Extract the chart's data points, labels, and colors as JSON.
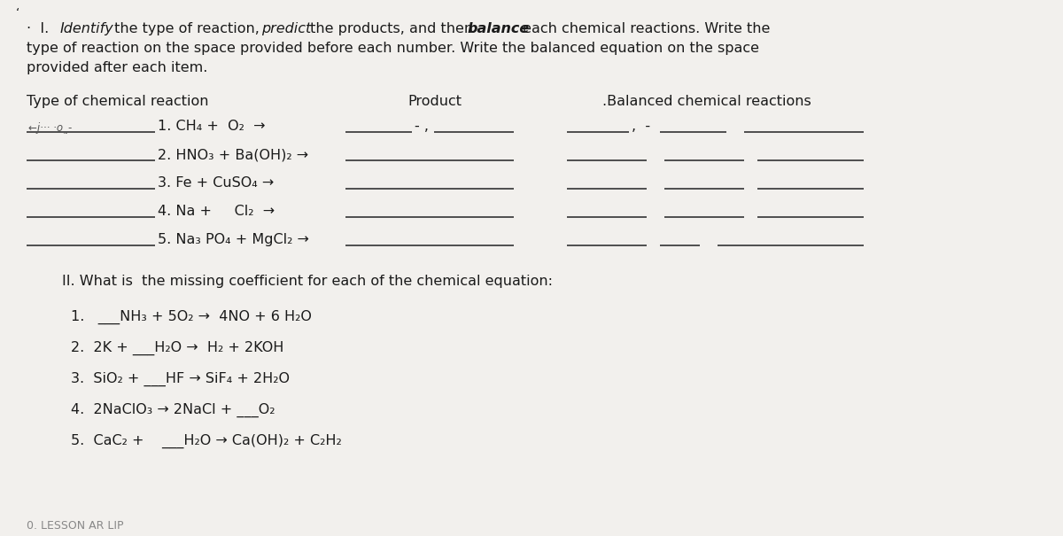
{
  "bg_color": "#f2f0ed",
  "text_color": "#1a1a1a",
  "line_color": "#333333",
  "fig_width": 12.0,
  "fig_height": 6.05,
  "dpi": 100,
  "font_size": 11.5,
  "font_family": "DejaVu Sans",
  "title_bullet": "·  I. ",
  "title_seg1_italic": "Identify",
  "title_seg2": " the type of reaction, ",
  "title_seg3_italic": "predict",
  "title_seg4": " the products, and then ",
  "title_seg5_bolditalic": "balance",
  "title_seg6": " each chemical reactions. Write the",
  "title_line2": "type of reaction on the space provided before each number. Write the balanced equation on the space",
  "title_line3": "provided after each item.",
  "col1_label": "Type of chemical reaction",
  "col2_label": "Product",
  "col3_label": ".Balanced chemical reactions",
  "reactions": [
    "1. CH₄ +  O₂  →",
    "2. HNO₃ + Ba(OH)₂ →",
    "3. Fe + CuSO₄ →",
    "4. Na +     Cl₂  →",
    "5. Na₃ PO₄ + MgCl₂ →"
  ],
  "section2_title": "II. What is  the missing coefficient for each of the chemical equation:",
  "equations": [
    "1.   ___NH₃ + 5O₂ →  4NO + 6 H₂O",
    "2.  2K + ___H₂O →  H₂ + 2KOH",
    "3.  SiO₂ + ___HF → SiF₄ + 2H₂O",
    "4.  2NaClO₃ → 2NaCl + ___O₂",
    "5.  CaC₂ +    ___H₂O → Ca(OH)₂ + C₂H₂"
  ]
}
